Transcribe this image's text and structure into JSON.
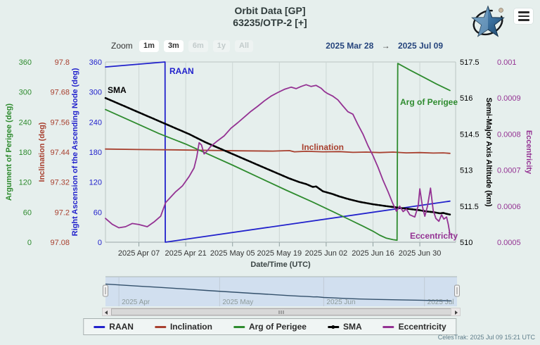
{
  "header": {
    "title_line1": "Orbit Data [GP]",
    "title_line2": "63235/OTP-2 [+]"
  },
  "range_selector": {
    "zoom_label": "Zoom",
    "buttons": [
      {
        "label": "1m",
        "enabled": true
      },
      {
        "label": "3m",
        "enabled": true
      },
      {
        "label": "6m",
        "enabled": false
      },
      {
        "label": "1y",
        "enabled": false
      },
      {
        "label": "All",
        "enabled": false
      }
    ],
    "from_date": "2025 Mar 28",
    "arrow": "→",
    "to_date": "2025 Jul 09"
  },
  "chart_data": {
    "type": "line",
    "xlabel": "Date/Time (UTC)",
    "x_range": {
      "start": "2025 Mar 28",
      "end": "2025 Jul 09",
      "days": 103
    },
    "x_ticks": [
      {
        "label": "2025 Apr 07",
        "day": 10
      },
      {
        "label": "2025 Apr 21",
        "day": 24
      },
      {
        "label": "2025 May 05",
        "day": 38
      },
      {
        "label": "2025 May 19",
        "day": 52
      },
      {
        "label": "2025 Jun 02",
        "day": 66
      },
      {
        "label": "2025 Jun 16",
        "day": 80
      },
      {
        "label": "2025 Jun 30",
        "day": 94
      }
    ],
    "axes": {
      "arg_of_perigee": {
        "title": "Argument of Perigee (deg)",
        "color": "#2E8B2E",
        "min": 0,
        "max": 360,
        "ticks": [
          "360",
          "300",
          "240",
          "180",
          "120",
          "60",
          "0"
        ]
      },
      "inclination": {
        "title": "Inclination (deg)",
        "color": "#A8402F",
        "min": 97.08,
        "max": 97.8,
        "ticks": [
          "97.8",
          "97.68",
          "97.56",
          "97.44",
          "97.32",
          "97.2",
          "97.08"
        ]
      },
      "raan": {
        "title": "Right Ascension of the Ascending Node (deg)",
        "color": "#2222CC",
        "min": 0,
        "max": 360,
        "ticks": [
          "360",
          "300",
          "240",
          "180",
          "120",
          "60",
          "0"
        ]
      },
      "sma": {
        "title": "Semi-Major Axis Altitude (km)",
        "color": "#000000",
        "min": 510,
        "max": 517.5,
        "ticks": [
          "517.5",
          "516",
          "514.5",
          "513",
          "511.5",
          "510"
        ]
      },
      "eccentricity": {
        "title": "Eccentricity",
        "color": "#943293",
        "min": 0.0005,
        "max": 0.001,
        "ticks": [
          "0.001",
          "0.0009",
          "0.0008",
          "0.0007",
          "0.0006",
          "0.0005"
        ]
      }
    },
    "series": [
      {
        "name": "RAAN",
        "axis": "raan",
        "color": "#2222CC",
        "points": [
          [
            0,
            350
          ],
          [
            17.8,
            360
          ],
          [
            17.9,
            0
          ],
          [
            103,
            82
          ]
        ]
      },
      {
        "name": "Inclination",
        "axis": "inclination",
        "color": "#A8402F",
        "points": [
          [
            0,
            97.452
          ],
          [
            10,
            97.45
          ],
          [
            20,
            97.449
          ],
          [
            30,
            97.447
          ],
          [
            40,
            97.445
          ],
          [
            50,
            97.444
          ],
          [
            55,
            97.446
          ],
          [
            56.5,
            97.441
          ],
          [
            60,
            97.443
          ],
          [
            65,
            97.441
          ],
          [
            70,
            97.442
          ],
          [
            74,
            97.439
          ],
          [
            78,
            97.44
          ],
          [
            82,
            97.438
          ],
          [
            86,
            97.44
          ],
          [
            90,
            97.437
          ],
          [
            94,
            97.438
          ],
          [
            98,
            97.436
          ],
          [
            101,
            97.437
          ],
          [
            103,
            97.435
          ]
        ]
      },
      {
        "name": "Arg of Perigee",
        "axis": "arg_of_perigee",
        "color": "#2E8B2E",
        "points": [
          [
            0,
            265
          ],
          [
            8,
            241
          ],
          [
            16,
            217
          ],
          [
            24,
            196
          ],
          [
            30,
            178
          ],
          [
            38,
            154
          ],
          [
            46,
            129
          ],
          [
            54,
            104
          ],
          [
            62,
            80
          ],
          [
            68,
            61
          ],
          [
            73,
            45
          ],
          [
            77,
            32
          ],
          [
            80,
            22
          ],
          [
            82,
            14
          ],
          [
            84,
            8
          ],
          [
            86,
            5
          ],
          [
            87.2,
            4
          ],
          [
            87.4,
            357
          ],
          [
            91,
            344
          ],
          [
            95,
            330
          ],
          [
            99,
            316
          ],
          [
            103,
            303
          ]
        ]
      },
      {
        "name": "SMA",
        "axis": "sma",
        "color": "#000000",
        "points": [
          [
            0,
            516.0
          ],
          [
            5,
            515.7
          ],
          [
            10,
            515.4
          ],
          [
            15,
            515.1
          ],
          [
            20,
            514.8
          ],
          [
            25,
            514.5
          ],
          [
            30,
            514.15
          ],
          [
            35,
            513.85
          ],
          [
            40,
            513.55
          ],
          [
            45,
            513.25
          ],
          [
            50,
            512.95
          ],
          [
            55,
            512.65
          ],
          [
            58,
            512.5
          ],
          [
            60,
            512.42
          ],
          [
            62,
            512.3
          ],
          [
            63,
            512.32
          ],
          [
            65,
            512.12
          ],
          [
            68,
            512.0
          ],
          [
            70,
            511.9
          ],
          [
            73,
            511.78
          ],
          [
            76,
            511.68
          ],
          [
            80,
            511.58
          ],
          [
            84,
            511.5
          ],
          [
            88,
            511.43
          ],
          [
            91,
            511.38
          ],
          [
            94,
            511.33
          ],
          [
            96,
            511.28
          ],
          [
            98,
            511.25
          ],
          [
            100,
            511.2
          ],
          [
            101,
            511.22
          ],
          [
            102,
            511.18
          ],
          [
            103,
            511.15
          ]
        ]
      },
      {
        "name": "Eccentricity",
        "axis": "eccentricity",
        "color": "#943293",
        "points": [
          [
            0,
            0.000566
          ],
          [
            2,
            0.00055
          ],
          [
            4,
            0.00054
          ],
          [
            6,
            0.000543
          ],
          [
            8,
            0.000552
          ],
          [
            10,
            0.000549
          ],
          [
            12.5,
            0.000543
          ],
          [
            14.5,
            0.000556
          ],
          [
            16.5,
            0.000572
          ],
          [
            18,
            0.00061
          ],
          [
            19.5,
            0.000625
          ],
          [
            21,
            0.00064
          ],
          [
            23,
            0.000656
          ],
          [
            25,
            0.000682
          ],
          [
            26.5,
            0.000706
          ],
          [
            27.3,
            0.000736
          ],
          [
            28,
            0.000776
          ],
          [
            28.7,
            0.00077
          ],
          [
            29.5,
            0.000745
          ],
          [
            30.3,
            0.000752
          ],
          [
            31.5,
            0.000766
          ],
          [
            33.5,
            0.000781
          ],
          [
            35.5,
            0.000795
          ],
          [
            37.5,
            0.000816
          ],
          [
            39.5,
            0.000831
          ],
          [
            41.5,
            0.000847
          ],
          [
            43.5,
            0.000863
          ],
          [
            45.5,
            0.000877
          ],
          [
            47.5,
            0.000892
          ],
          [
            49.5,
            0.000905
          ],
          [
            51.5,
            0.000915
          ],
          [
            53.5,
            0.000924
          ],
          [
            55.5,
            0.00093
          ],
          [
            57,
            0.000926
          ],
          [
            58.5,
            0.000932
          ],
          [
            60,
            0.000937
          ],
          [
            61.5,
            0.000932
          ],
          [
            63,
            0.000935
          ],
          [
            64.5,
            0.000927
          ],
          [
            65.5,
            0.000918
          ],
          [
            66.5,
            0.000912
          ],
          [
            68,
            0.000905
          ],
          [
            69.5,
            0.000895
          ],
          [
            71,
            0.000878
          ],
          [
            72.5,
            0.000862
          ],
          [
            74,
            0.000855
          ],
          [
            75.5,
            0.000826
          ],
          [
            77,
            0.0008
          ],
          [
            78.5,
            0.000768
          ],
          [
            80,
            0.00074
          ],
          [
            81.5,
            0.000708
          ],
          [
            83,
            0.000672
          ],
          [
            84.5,
            0.00064
          ],
          [
            85.8,
            0.00061
          ],
          [
            87,
            0.000586
          ],
          [
            88,
            0.0006
          ],
          [
            89,
            0.000585
          ],
          [
            90,
            0.000592
          ],
          [
            91,
            0.000576
          ],
          [
            92.5,
            0.00057
          ],
          [
            93.5,
            0.0006
          ],
          [
            94,
            0.000648
          ],
          [
            94.8,
            0.000598
          ],
          [
            95.5,
            0.000572
          ],
          [
            96.3,
            0.0006
          ],
          [
            97.2,
            0.00065
          ],
          [
            98,
            0.000588
          ],
          [
            98.8,
            0.000566
          ],
          [
            99.7,
            0.000558
          ],
          [
            100.5,
            0.000576
          ],
          [
            101.2,
            0.000564
          ],
          [
            102,
            0.00057
          ],
          [
            102.5,
            0.00055
          ],
          [
            103,
            0.000522
          ]
        ]
      }
    ],
    "navigator": {
      "months": [
        {
          "label": "2025 Apr",
          "day": 4
        },
        {
          "label": "2025 May",
          "day": 34
        },
        {
          "label": "2025 Jun",
          "day": 65
        },
        {
          "label": "2025 Jul",
          "day": 95
        }
      ]
    },
    "legend_position": "bottom",
    "grid": "vertical-only"
  },
  "footer": {
    "credit": "CelesTrak: 2025 Jul 09 15:21 UTC"
  }
}
